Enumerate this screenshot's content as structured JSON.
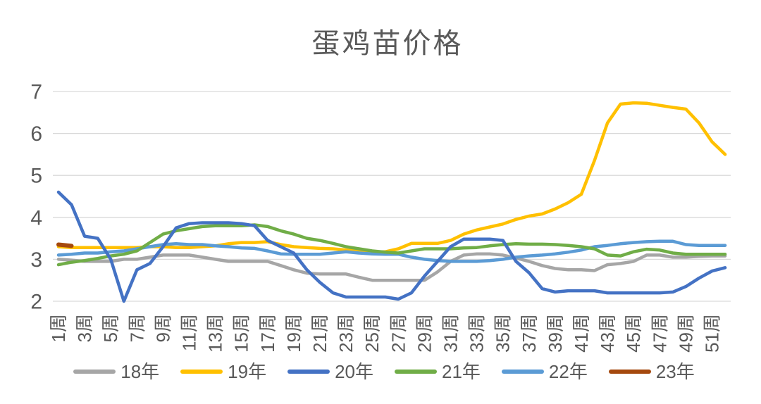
{
  "title": "蛋鸡苗价格",
  "axes": {
    "y_ticks": [
      "7",
      "6",
      "5",
      "4",
      "3",
      "2"
    ],
    "x_tick_labels": [
      "1周",
      "3周",
      "5周",
      "7周",
      "9周",
      "11周",
      "13周",
      "15周",
      "17周",
      "19周",
      "21周",
      "23周",
      "25周",
      "27周",
      "29周",
      "31周",
      "33周",
      "35周",
      "37周",
      "39周",
      "41周",
      "43周",
      "45周",
      "47周",
      "49周",
      "51周"
    ],
    "text_color": "#595959",
    "grid_color": "#D9D9D9"
  },
  "chart_data": {
    "type": "line",
    "title": "蛋鸡苗价格",
    "xlabel": "",
    "ylabel": "",
    "ylim": [
      2,
      7
    ],
    "grid": "horizontal",
    "legend_position": "bottom",
    "x_values": [
      1,
      2,
      3,
      4,
      5,
      6,
      7,
      8,
      9,
      10,
      11,
      12,
      13,
      14,
      15,
      16,
      17,
      18,
      19,
      20,
      21,
      22,
      23,
      24,
      25,
      26,
      27,
      28,
      29,
      30,
      31,
      32,
      33,
      34,
      35,
      36,
      37,
      38,
      39,
      40,
      41,
      42,
      43,
      44,
      45,
      46,
      47,
      48,
      49,
      50,
      51,
      52
    ],
    "x_unit": "周",
    "series": [
      {
        "id": "18",
        "name": "18年",
        "color": "#A6A6A6",
        "values": [
          3.0,
          2.98,
          2.95,
          2.95,
          2.95,
          3.0,
          3.0,
          3.05,
          3.1,
          3.1,
          3.1,
          3.05,
          3.0,
          2.95,
          2.95,
          2.95,
          2.95,
          2.85,
          2.75,
          2.67,
          2.65,
          2.65,
          2.65,
          2.57,
          2.5,
          2.5,
          2.5,
          2.5,
          2.5,
          2.7,
          2.95,
          3.1,
          3.13,
          3.13,
          3.1,
          3.03,
          2.95,
          2.85,
          2.78,
          2.75,
          2.75,
          2.73,
          2.87,
          2.9,
          2.95,
          3.1,
          3.1,
          3.05,
          3.05,
          3.07,
          3.08,
          3.08
        ]
      },
      {
        "id": "19",
        "name": "19年",
        "color": "#FFC000",
        "values": [
          3.3,
          3.28,
          3.28,
          3.28,
          3.28,
          3.28,
          3.28,
          3.3,
          3.3,
          3.28,
          3.28,
          3.3,
          3.32,
          3.37,
          3.4,
          3.4,
          3.42,
          3.35,
          3.3,
          3.28,
          3.26,
          3.25,
          3.22,
          3.2,
          3.18,
          3.18,
          3.25,
          3.38,
          3.38,
          3.38,
          3.45,
          3.6,
          3.7,
          3.77,
          3.84,
          3.95,
          4.03,
          4.08,
          4.2,
          4.35,
          4.55,
          5.35,
          6.25,
          6.7,
          6.73,
          6.72,
          6.67,
          6.62,
          6.58,
          6.25,
          5.8,
          5.5
        ]
      },
      {
        "id": "20",
        "name": "20年",
        "color": "#4472C4",
        "values": [
          4.6,
          4.3,
          3.55,
          3.5,
          3.0,
          2.0,
          2.75,
          2.9,
          3.3,
          3.75,
          3.85,
          3.87,
          3.87,
          3.87,
          3.85,
          3.8,
          3.45,
          3.3,
          3.15,
          2.75,
          2.45,
          2.2,
          2.1,
          2.1,
          2.1,
          2.1,
          2.05,
          2.2,
          2.6,
          2.95,
          3.3,
          3.48,
          3.48,
          3.48,
          3.45,
          2.95,
          2.68,
          2.3,
          2.22,
          2.25,
          2.25,
          2.25,
          2.2,
          2.2,
          2.2,
          2.2,
          2.2,
          2.22,
          2.35,
          2.55,
          2.72,
          2.8
        ]
      },
      {
        "id": "21",
        "name": "21年",
        "color": "#70AD47",
        "values": [
          2.87,
          2.93,
          2.97,
          3.02,
          3.08,
          3.12,
          3.2,
          3.4,
          3.6,
          3.68,
          3.73,
          3.78,
          3.8,
          3.8,
          3.8,
          3.82,
          3.78,
          3.68,
          3.6,
          3.5,
          3.45,
          3.38,
          3.3,
          3.25,
          3.2,
          3.17,
          3.15,
          3.2,
          3.25,
          3.25,
          3.25,
          3.27,
          3.28,
          3.32,
          3.35,
          3.37,
          3.36,
          3.36,
          3.35,
          3.33,
          3.3,
          3.25,
          3.1,
          3.08,
          3.18,
          3.24,
          3.22,
          3.15,
          3.12,
          3.12,
          3.12,
          3.12
        ]
      },
      {
        "id": "22",
        "name": "22年",
        "color": "#5B9BD5",
        "values": [
          3.1,
          3.12,
          3.15,
          3.15,
          3.18,
          3.2,
          3.25,
          3.3,
          3.35,
          3.37,
          3.35,
          3.35,
          3.32,
          3.3,
          3.27,
          3.26,
          3.2,
          3.13,
          3.12,
          3.12,
          3.12,
          3.15,
          3.18,
          3.15,
          3.13,
          3.12,
          3.12,
          3.05,
          3.0,
          2.97,
          2.95,
          2.95,
          2.95,
          2.97,
          3.0,
          3.05,
          3.08,
          3.1,
          3.13,
          3.17,
          3.22,
          3.3,
          3.33,
          3.37,
          3.4,
          3.42,
          3.43,
          3.43,
          3.35,
          3.33,
          3.33,
          3.33
        ]
      },
      {
        "id": "23",
        "name": "23年",
        "color": "#A5490E",
        "x_values": [
          1,
          2
        ],
        "values": [
          3.35,
          3.32
        ]
      }
    ],
    "draw_order": [
      "18",
      "19",
      "22",
      "21",
      "20",
      "23"
    ]
  }
}
